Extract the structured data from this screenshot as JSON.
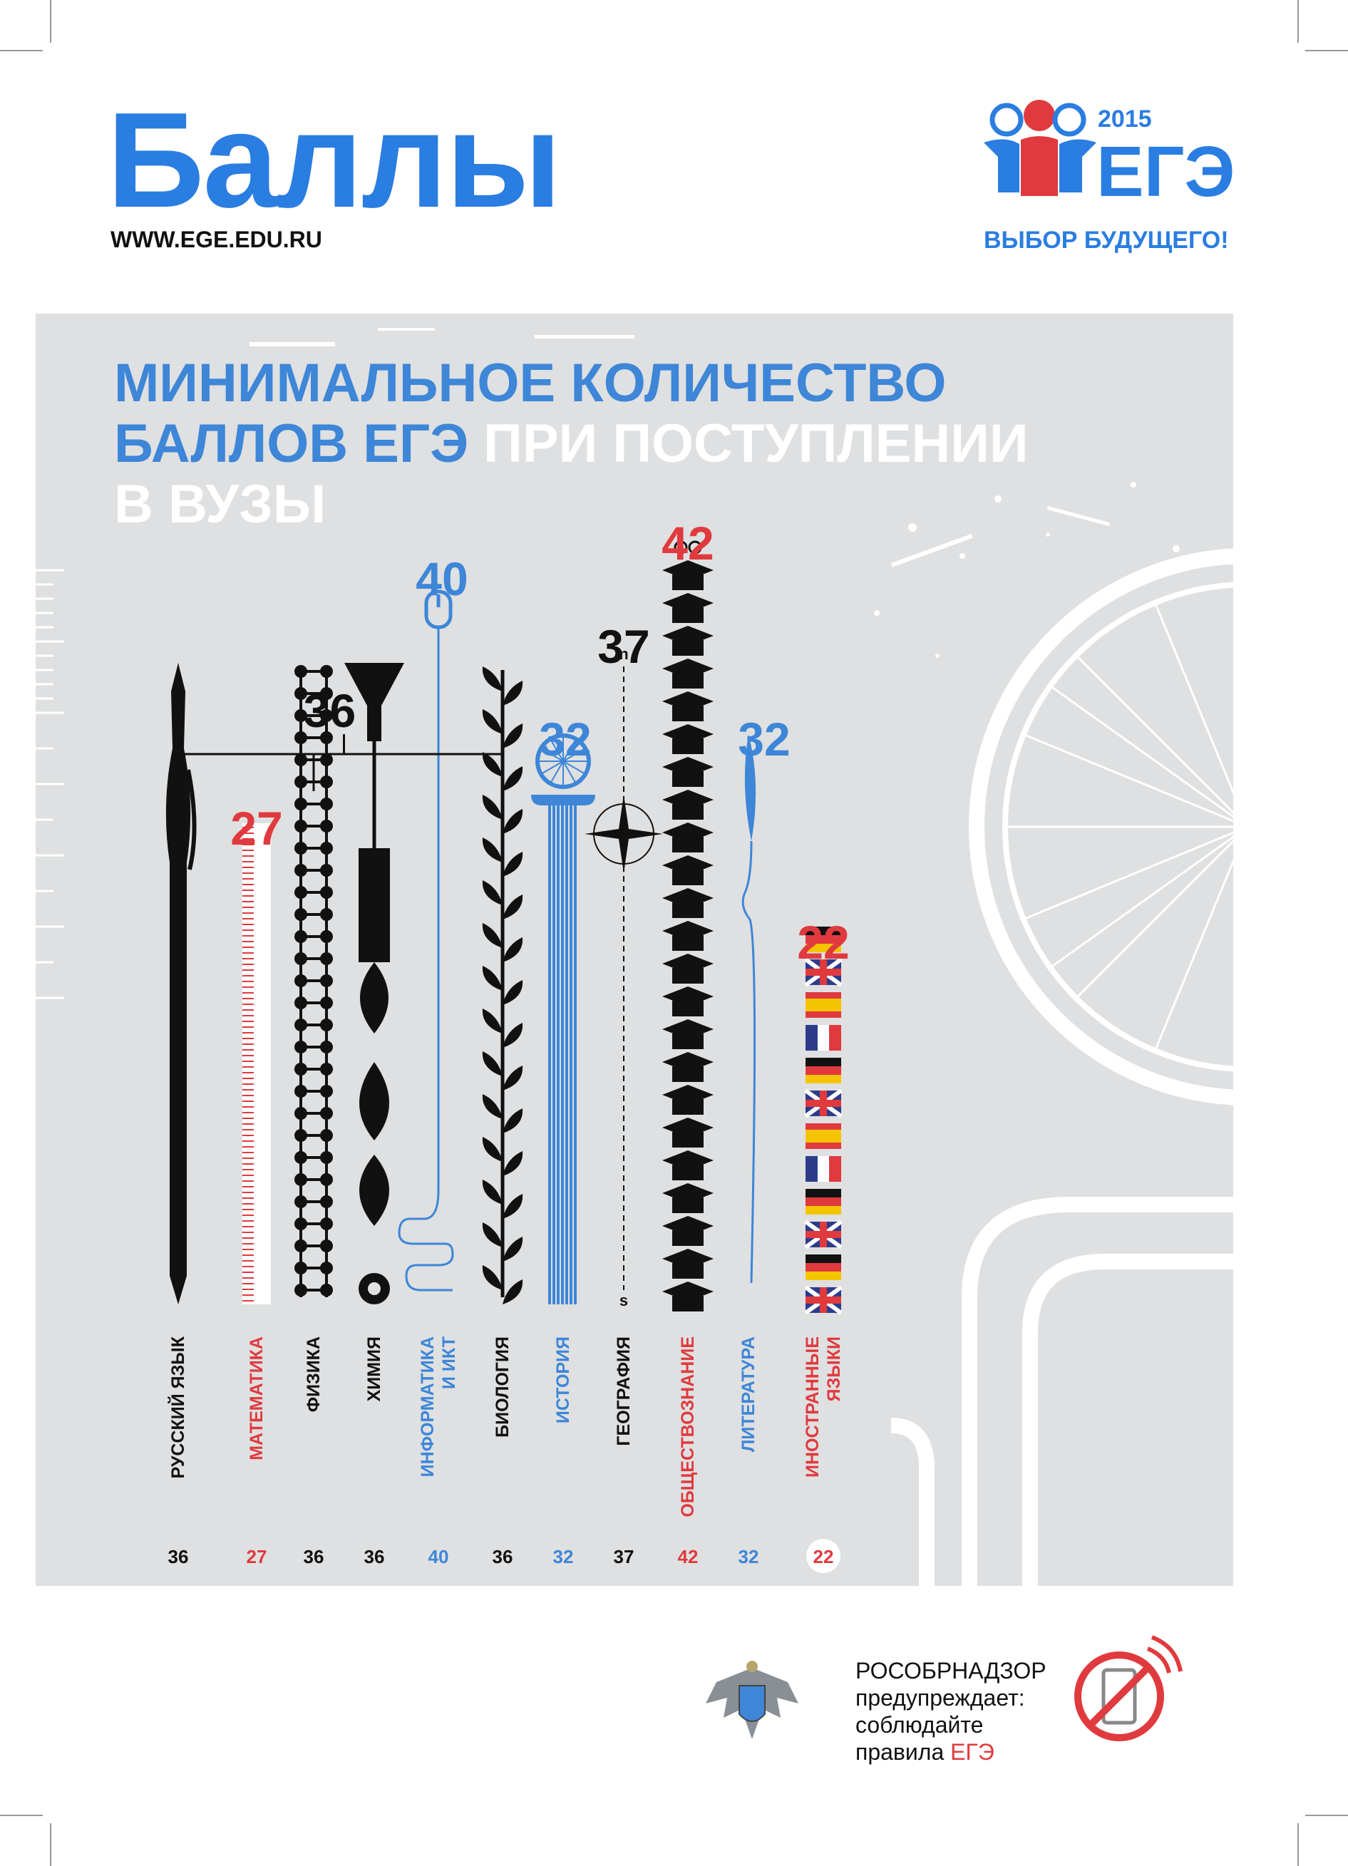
{
  "header": {
    "title": "Баллы",
    "url": "WWW.EGE.EDU.RU",
    "logo_year": "2015",
    "logo_text": "ЕГЭ",
    "tagline": "ВЫБОР БУДУЩЕГО!"
  },
  "headline": {
    "line1": "МИНИМАЛЬНОЕ КОЛИЧЕСТВО",
    "line2_blue": "БАЛЛОВ ЕГЭ",
    "line2_white": " ПРИ ПОСТУПЛЕНИИ",
    "line3": "В ВУЗЫ"
  },
  "colors": {
    "blue": "#3d86d8",
    "red": "#e03a3e",
    "black": "#111111",
    "panel": "#dfe0e1"
  },
  "chart_data": {
    "type": "bar",
    "categories": [
      "РУССКИЙ ЯЗЫК",
      "МАТЕМАТИКА",
      "ФИЗИКА",
      "ХИМИЯ",
      "ИНФОРМАТИКА И ИКТ",
      "БИОЛОГИЯ",
      "ИСТОРИЯ",
      "ГЕОГРАФИЯ",
      "ОБЩЕСТВОЗНАНИЕ",
      "ЛИТЕРАТУРА",
      "ИНОСТРАННЫЕ ЯЗЫКИ"
    ],
    "label_lines": [
      [
        "РУССКИЙ ЯЗЫК"
      ],
      [
        "МАТЕМАТИКА"
      ],
      [
        "ФИЗИКА"
      ],
      [
        "ХИМИЯ"
      ],
      [
        "ИНФОРМАТИКА",
        "И ИКТ"
      ],
      [
        "БИОЛОГИЯ"
      ],
      [
        "ИСТОРИЯ"
      ],
      [
        "ГЕОГРАФИЯ"
      ],
      [
        "ОБЩЕСТВОЗНАНИЕ"
      ],
      [
        "ЛИТЕРАТУРА"
      ],
      [
        "ИНОСТРАННЫЕ",
        "ЯЗЫКИ"
      ]
    ],
    "values": [
      36,
      27,
      36,
      36,
      40,
      36,
      32,
      37,
      42,
      32,
      22
    ],
    "colors": [
      "#111111",
      "#e03a3e",
      "#111111",
      "#111111",
      "#3d86d8",
      "#111111",
      "#3d86d8",
      "#111111",
      "#e03a3e",
      "#3d86d8",
      "#e03a3e"
    ],
    "icons": [
      "pen",
      "ruler",
      "molecule",
      "flask",
      "mouse",
      "plant",
      "column",
      "compass",
      "caps",
      "quill",
      "flags"
    ],
    "top_labels": [
      {
        "text": "36",
        "color": "#111111"
      },
      {
        "text": "27",
        "color": "#e03a3e"
      },
      {
        "text": "40",
        "color": "#3d86d8"
      },
      {
        "text": "32",
        "color": "#3d86d8"
      },
      {
        "text": "37",
        "color": "#111111"
      },
      {
        "text": "42",
        "color": "#e03a3e"
      },
      {
        "text": "32",
        "color": "#3d86d8"
      },
      {
        "text": "22",
        "color": "#e03a3e"
      }
    ],
    "bracket_group": [
      "РУССКИЙ ЯЗЫК",
      "ФИЗИКА",
      "ХИМИЯ",
      "БИОЛОГИЯ"
    ],
    "compass_labels": [
      "n",
      "s"
    ]
  },
  "footer": {
    "line1": "РОСОБРНАДЗОР",
    "line2": "предупреждает:",
    "line3": "соблюдайте",
    "line4_prefix": "правила ",
    "line4_red": "ЕГЭ"
  }
}
